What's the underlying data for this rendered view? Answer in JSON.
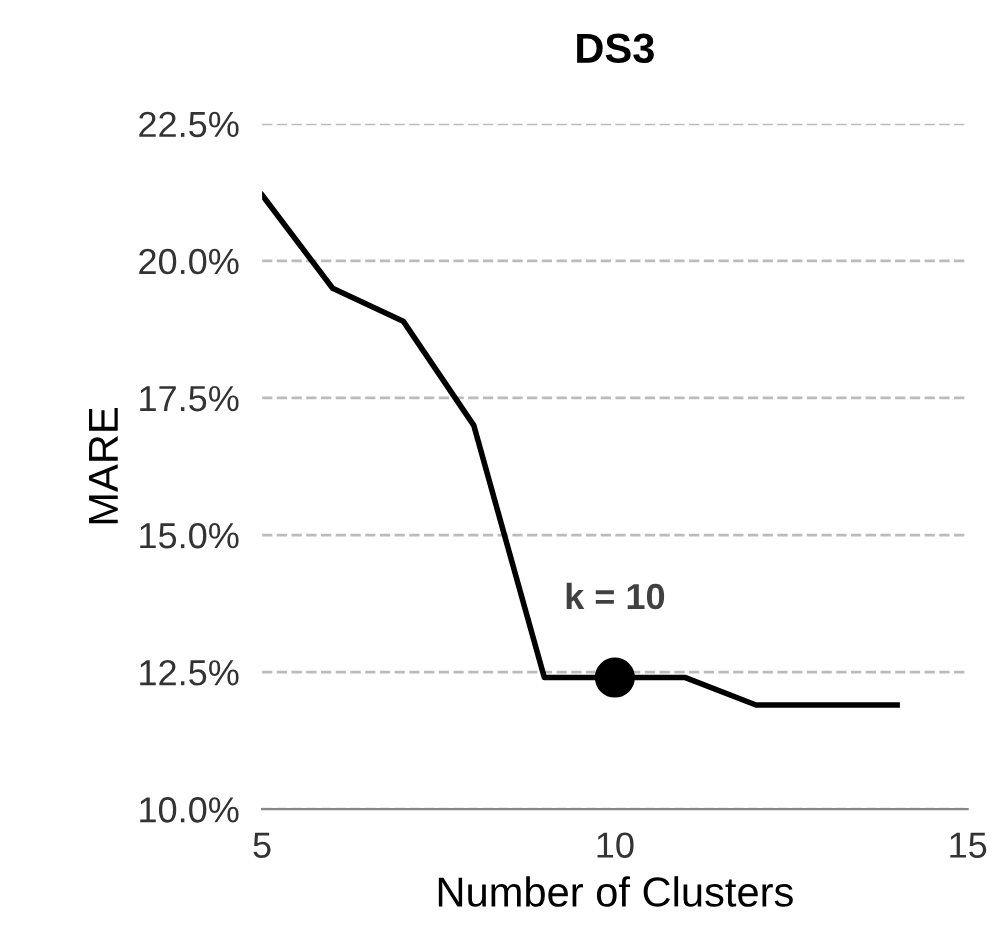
{
  "chart_data": {
    "type": "line",
    "title": "DS3",
    "xlabel": "Number of Clusters",
    "ylabel": "MARE",
    "series": [
      {
        "color": "#000000",
        "x": [
          5,
          6,
          7,
          8,
          9,
          10,
          11,
          12,
          13,
          14
        ],
        "values": [
          21.2,
          19.5,
          18.9,
          17.0,
          12.4,
          12.4,
          12.4,
          11.9,
          11.9,
          11.9
        ]
      },
      {
        "type": "scatter",
        "color": "#000000",
        "x": [
          10
        ],
        "values": [
          12.4
        ]
      }
    ],
    "annotations": [
      {
        "text": "k = 10",
        "x": 10,
        "y": 12.4
      }
    ],
    "xlim": [
      5,
      15
    ],
    "xticks": [
      5,
      10,
      15
    ],
    "ylim": [
      10,
      22.5
    ],
    "yticks": [
      {
        "value": 10,
        "label": "10.0%"
      },
      {
        "value": 12.5,
        "label": "12.5%"
      },
      {
        "value": 15,
        "label": "15.0%"
      },
      {
        "value": 17.5,
        "label": "17.5%"
      },
      {
        "value": 20,
        "label": "20.0%"
      },
      {
        "value": 22.5,
        "label": "22.5%"
      }
    ],
    "grid": "y",
    "line_style": "solid"
  }
}
